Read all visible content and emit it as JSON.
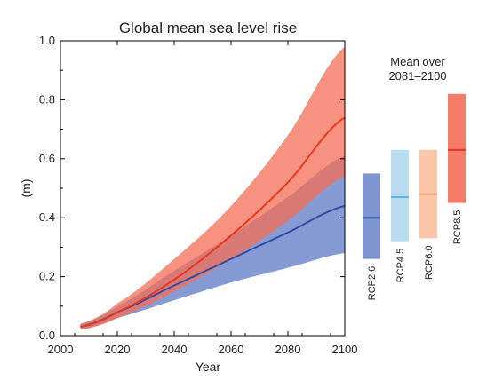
{
  "chart_data": {
    "type": "area",
    "title": "Global mean sea level rise",
    "xlabel": "Year",
    "ylabel": "(m)",
    "xlim": [
      2000,
      2100
    ],
    "ylim": [
      0,
      1.0
    ],
    "xticks": [
      2000,
      2020,
      2040,
      2060,
      2080,
      2100
    ],
    "yticks": [
      0.0,
      0.2,
      0.4,
      0.6,
      0.8,
      1.0
    ],
    "ytick_labels": [
      "0.0",
      "0.2",
      "0.4",
      "0.6",
      "0.8",
      "1.0"
    ],
    "grid": false,
    "series": [
      {
        "name": "RCP2.6",
        "color": "#2d4fa5",
        "band_color": "#7f95d1",
        "x": [
          2007,
          2020,
          2040,
          2060,
          2080,
          2100
        ],
        "mean": [
          0.03,
          0.08,
          0.17,
          0.26,
          0.35,
          0.44
        ],
        "low": [
          0.02,
          0.06,
          0.12,
          0.18,
          0.23,
          0.28
        ],
        "high": [
          0.04,
          0.1,
          0.22,
          0.34,
          0.47,
          0.61
        ]
      },
      {
        "name": "RCP8.5",
        "color": "#e8371f",
        "band_color": "#f46d55",
        "x": [
          2007,
          2020,
          2040,
          2060,
          2080,
          2100
        ],
        "mean": [
          0.03,
          0.08,
          0.19,
          0.34,
          0.52,
          0.74
        ],
        "low": [
          0.02,
          0.06,
          0.15,
          0.26,
          0.39,
          0.54
        ],
        "high": [
          0.04,
          0.11,
          0.26,
          0.44,
          0.68,
          0.98
        ]
      }
    ],
    "summary": {
      "title_lines": [
        "Mean over",
        "2081–2100"
      ],
      "bars": [
        {
          "name": "RCP2.6",
          "low": 0.26,
          "high": 0.55,
          "mean": 0.4,
          "color": "#7f95d1",
          "line_color": "#2d4fa5"
        },
        {
          "name": "RCP4.5",
          "low": 0.32,
          "high": 0.63,
          "mean": 0.47,
          "color": "#b8ddf0",
          "line_color": "#5ab6e0"
        },
        {
          "name": "RCP6.0",
          "low": 0.33,
          "high": 0.63,
          "mean": 0.48,
          "color": "#fcc6a8",
          "line_color": "#f29a63"
        },
        {
          "name": "RCP8.5",
          "low": 0.45,
          "high": 0.82,
          "mean": 0.63,
          "color": "#f47c68",
          "line_color": "#e8371f"
        }
      ]
    }
  }
}
